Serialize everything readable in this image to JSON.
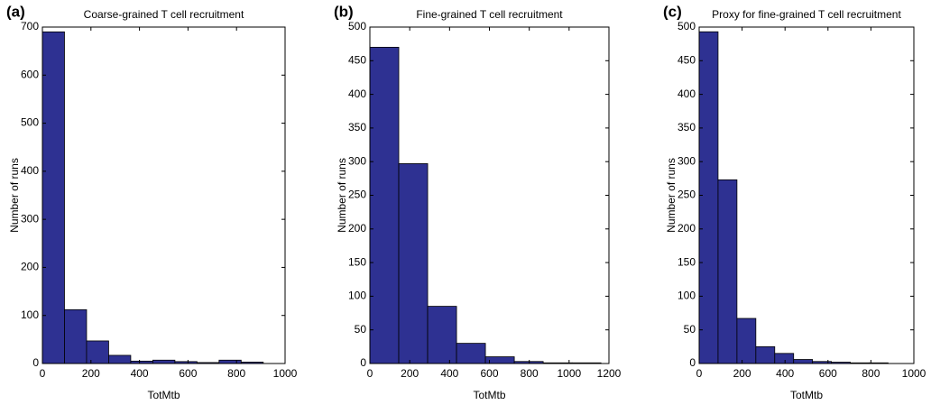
{
  "chart_data": [
    {
      "type": "histogram",
      "panel_label": "(a)",
      "title": "Coarse-grained T cell recruitment",
      "x_label": "TotMtb",
      "y_label": "Number of runs",
      "color": "#2e3192",
      "bins": [
        0,
        91,
        182,
        273,
        364,
        455,
        546,
        637,
        728,
        819,
        910
      ],
      "values": [
        690,
        112,
        47,
        17,
        5,
        7,
        4,
        2,
        7,
        3
      ],
      "xlim": [
        0,
        1000
      ],
      "xticks": [
        0,
        200,
        400,
        600,
        800,
        1000
      ],
      "ylim": [
        0,
        700
      ],
      "yticks": [
        0,
        100,
        200,
        300,
        400,
        500,
        600,
        700
      ]
    },
    {
      "type": "histogram",
      "panel_label": "(b)",
      "title": "Fine-grained T cell recruitment",
      "x_label": "TotMtb",
      "y_label": "Number of runs",
      "color": "#2e3192",
      "bins": [
        0,
        145,
        290,
        435,
        580,
        725,
        870,
        1015,
        1160
      ],
      "values": [
        470,
        297,
        85,
        30,
        10,
        3,
        1,
        1
      ],
      "xlim": [
        0,
        1200
      ],
      "xticks": [
        0,
        200,
        400,
        600,
        800,
        1000,
        1200
      ],
      "ylim": [
        0,
        500
      ],
      "yticks": [
        0,
        50,
        100,
        150,
        200,
        250,
        300,
        350,
        400,
        450,
        500
      ]
    },
    {
      "type": "histogram",
      "panel_label": "(c)",
      "title": "Proxy  for fine-grained T cell recruitment",
      "x_label": "TotMtb",
      "y_label": "Number of runs",
      "color": "#2e3192",
      "bins": [
        0,
        88,
        176,
        264,
        352,
        440,
        528,
        616,
        704,
        792,
        880
      ],
      "values": [
        493,
        273,
        67,
        25,
        15,
        6,
        3,
        2,
        1,
        1
      ],
      "xlim": [
        0,
        1000
      ],
      "xticks": [
        0,
        200,
        400,
        600,
        800,
        1000
      ],
      "ylim": [
        0,
        500
      ],
      "yticks": [
        0,
        50,
        100,
        150,
        200,
        250,
        300,
        350,
        400,
        450,
        500
      ]
    }
  ]
}
